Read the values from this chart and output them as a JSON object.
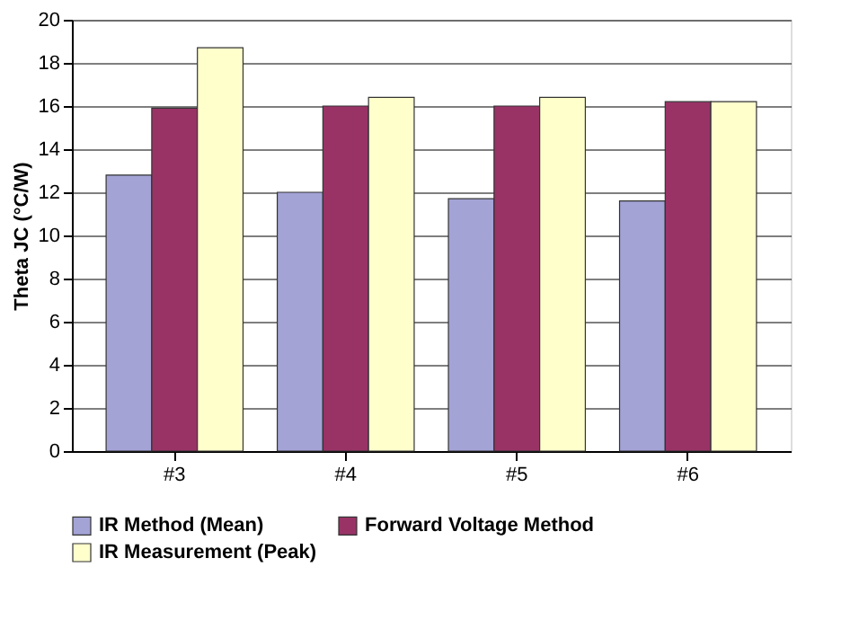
{
  "chart_data": {
    "type": "bar",
    "ylabel": "Theta JC (°C/W)",
    "categories": [
      "#3",
      "#4",
      "#5",
      "#6"
    ],
    "series": [
      {
        "name": "IR Method (Mean)",
        "color": "#a3a3d6",
        "values": [
          12.8,
          12.0,
          11.7,
          11.6
        ]
      },
      {
        "name": "Forward Voltage Method",
        "color": "#993366",
        "values": [
          15.9,
          16.0,
          16.0,
          16.2
        ]
      },
      {
        "name": "IR Measurement (Peak)",
        "color": "#ffffcc",
        "values": [
          18.7,
          16.4,
          16.4,
          16.2
        ]
      }
    ],
    "ylim": [
      0,
      20
    ],
    "yticks": [
      0,
      2,
      4,
      6,
      8,
      10,
      12,
      14,
      16,
      18,
      20
    ],
    "grid": "y",
    "legend": "bottom"
  }
}
